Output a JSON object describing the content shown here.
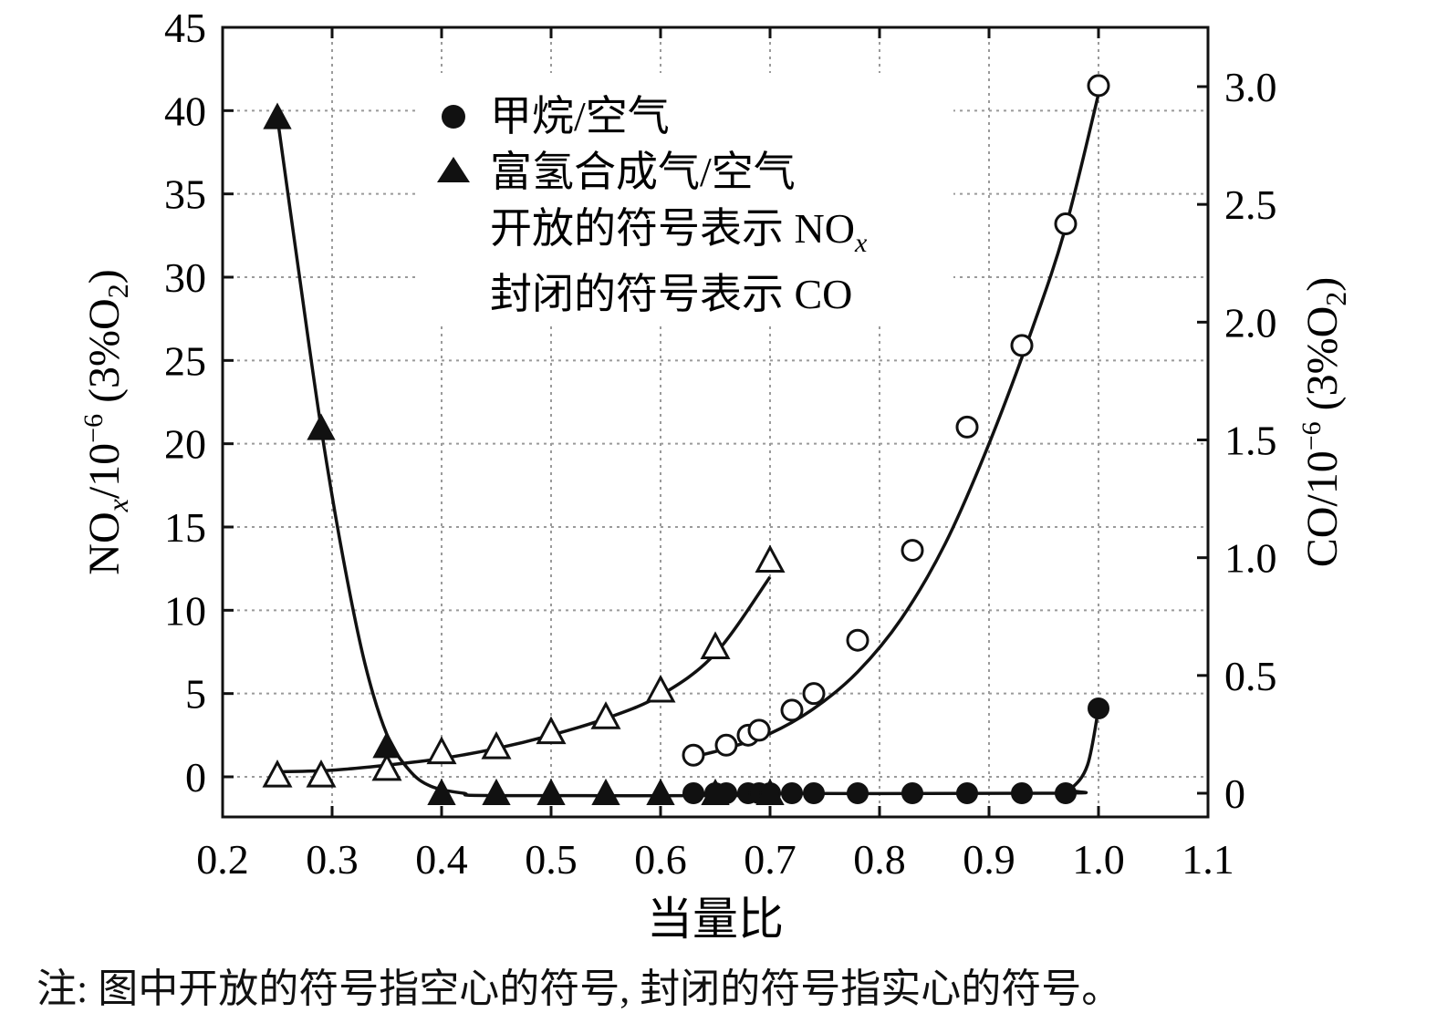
{
  "chart_data": {
    "type": "scatter",
    "xlabel": "当量比",
    "ylabel_left": {
      "main": "NO",
      "sub1": "x",
      "mid": "/10",
      "sup": "−6",
      "tail": " (3%O",
      "sub2": "2",
      "end": ")"
    },
    "ylabel_right": {
      "main": "CO/10",
      "sup": "−6",
      "tail": " (3%O",
      "sub2": "2",
      "end": ")"
    },
    "xlim": [
      0.2,
      1.1
    ],
    "ylim_left": [
      -2.5,
      45
    ],
    "ylim_right": [
      -0.08,
      3.0
    ],
    "x_ticks": [
      "0.2",
      "0.3",
      "0.4",
      "0.5",
      "0.6",
      "0.7",
      "0.8",
      "0.9",
      "1.0",
      "1.1"
    ],
    "x_tick_values": [
      0.2,
      0.3,
      0.4,
      0.5,
      0.6,
      0.7,
      0.8,
      0.9,
      1.0,
      1.1
    ],
    "y_left_ticks": [
      "0",
      "5",
      "10",
      "15",
      "20",
      "25",
      "30",
      "35",
      "40",
      "45"
    ],
    "y_left_tick_values": [
      0,
      5,
      10,
      15,
      20,
      25,
      30,
      35,
      40,
      45
    ],
    "y_right_ticks": [
      "0",
      "0.5",
      "1.0",
      "1.5",
      "2.0",
      "2.5",
      "3.0"
    ],
    "y_right_tick_values": [
      0,
      0.5,
      1.0,
      1.5,
      2.0,
      2.5,
      3.0
    ],
    "grid": true,
    "legend_position": "top-center",
    "legend": [
      {
        "marker": "circle",
        "text": "甲烷/空气"
      },
      {
        "marker": "triangle",
        "text": "富氢合成气/空气"
      },
      {
        "marker": "none",
        "text": "开放的符号表示 NO",
        "sub": "x"
      },
      {
        "marker": "none",
        "text": "封闭的符号表示 CO"
      }
    ],
    "series": [
      {
        "name": "甲烷/空气",
        "quantity": "NOx",
        "axis": "left",
        "marker": "circle",
        "filled": false,
        "points": [
          [
            0.63,
            1.3
          ],
          [
            0.66,
            1.9
          ],
          [
            0.68,
            2.5
          ],
          [
            0.69,
            2.8
          ],
          [
            0.72,
            4.0
          ],
          [
            0.74,
            5.0
          ],
          [
            0.78,
            8.2
          ],
          [
            0.83,
            13.6
          ],
          [
            0.88,
            21.0
          ],
          [
            0.93,
            25.9
          ],
          [
            0.97,
            33.2
          ],
          [
            1.0,
            41.5
          ]
        ],
        "curve": [
          [
            0.63,
            1.2
          ],
          [
            0.66,
            1.7
          ],
          [
            0.7,
            2.6
          ],
          [
            0.74,
            4.1
          ],
          [
            0.78,
            6.3
          ],
          [
            0.82,
            9.5
          ],
          [
            0.86,
            14.0
          ],
          [
            0.9,
            20.0
          ],
          [
            0.94,
            27.0
          ],
          [
            0.97,
            33.0
          ],
          [
            1.0,
            41.0
          ]
        ]
      },
      {
        "name": "富氢合成气/空气",
        "quantity": "NOx",
        "axis": "left",
        "marker": "triangle",
        "filled": false,
        "points": [
          [
            0.25,
            0.1
          ],
          [
            0.29,
            0.1
          ],
          [
            0.35,
            0.5
          ],
          [
            0.4,
            1.5
          ],
          [
            0.45,
            1.8
          ],
          [
            0.5,
            2.7
          ],
          [
            0.55,
            3.6
          ],
          [
            0.6,
            5.2
          ],
          [
            0.65,
            7.8
          ],
          [
            0.7,
            13.0
          ]
        ],
        "curve": [
          [
            0.25,
            0.3
          ],
          [
            0.3,
            0.4
          ],
          [
            0.35,
            0.7
          ],
          [
            0.4,
            1.1
          ],
          [
            0.45,
            1.7
          ],
          [
            0.5,
            2.5
          ],
          [
            0.55,
            3.5
          ],
          [
            0.6,
            4.9
          ],
          [
            0.65,
            7.4
          ],
          [
            0.7,
            12.0
          ]
        ]
      },
      {
        "name": "甲烷/空气",
        "quantity": "CO",
        "axis": "right",
        "marker": "circle",
        "filled": true,
        "points": [
          [
            0.63,
            0.0
          ],
          [
            0.65,
            0.0
          ],
          [
            0.66,
            0.0
          ],
          [
            0.68,
            0.0
          ],
          [
            0.69,
            0.0
          ],
          [
            0.7,
            0.0
          ],
          [
            0.72,
            0.0
          ],
          [
            0.74,
            0.0
          ],
          [
            0.78,
            0.0
          ],
          [
            0.83,
            0.0
          ],
          [
            0.88,
            0.0
          ],
          [
            0.93,
            0.0
          ],
          [
            0.97,
            0.0
          ],
          [
            1.0,
            0.36
          ]
        ],
        "curve": [
          [
            0.63,
            0.0
          ],
          [
            0.96,
            0.0
          ],
          [
            0.975,
            0.02
          ],
          [
            0.99,
            0.12
          ],
          [
            1.0,
            0.36
          ]
        ]
      },
      {
        "name": "富氢合成气/空气",
        "quantity": "CO",
        "axis": "right",
        "marker": "triangle",
        "filled": true,
        "points": [
          [
            0.25,
            2.87
          ],
          [
            0.29,
            1.55
          ],
          [
            0.35,
            0.2
          ],
          [
            0.4,
            0.0
          ],
          [
            0.45,
            0.0
          ],
          [
            0.5,
            0.0
          ],
          [
            0.55,
            0.0
          ],
          [
            0.6,
            0.0
          ],
          [
            0.65,
            0.0
          ],
          [
            0.7,
            0.0
          ]
        ],
        "curve": [
          [
            0.25,
            2.87
          ],
          [
            0.27,
            2.2
          ],
          [
            0.29,
            1.55
          ],
          [
            0.31,
            1.0
          ],
          [
            0.33,
            0.55
          ],
          [
            0.35,
            0.25
          ],
          [
            0.37,
            0.1
          ],
          [
            0.39,
            0.03
          ],
          [
            0.42,
            0.0
          ],
          [
            0.45,
            -0.01
          ],
          [
            0.7,
            -0.01
          ]
        ]
      }
    ]
  },
  "note": "注: 图中开放的符号指空心的符号, 封闭的符号指实心的符号。"
}
